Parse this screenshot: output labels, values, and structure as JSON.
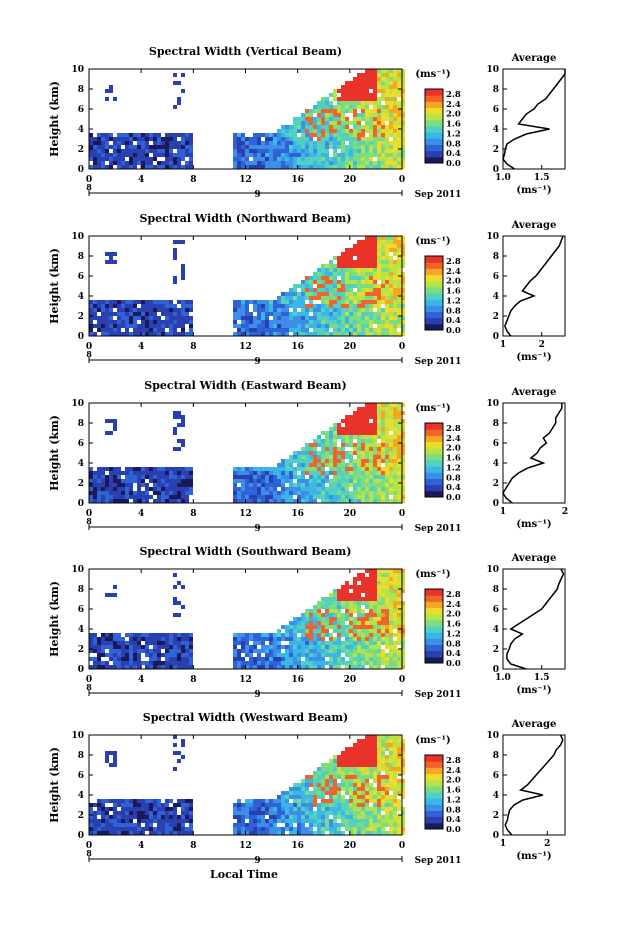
{
  "figure": {
    "xlabel": "Local Time",
    "date_label": "Sep 2011",
    "colorbar_unit": "(ms⁻¹)",
    "colorbar_ticks": [
      "0.0",
      "0.4",
      "0.8",
      "1.2",
      "1.6",
      "2.0",
      "2.4",
      "2.8"
    ],
    "average_title": "Average",
    "average_xlabel": "(ms⁻¹)",
    "colors": [
      "#1a1a5a",
      "#2a3fb0",
      "#2f62d6",
      "#3d8ee8",
      "#39b7e6",
      "#52d1c0",
      "#7ddc7f",
      "#b7e34a",
      "#ecdc2c",
      "#f6a623",
      "#f0632a",
      "#e8322a"
    ]
  },
  "chart_data": [
    {
      "type": "heatmap",
      "title": "Spectral Width (Vertical Beam)",
      "ylabel": "Height (km)",
      "xlabel": "Local Time",
      "x_ticks": [
        "0",
        "4",
        "8",
        "12",
        "16",
        "20",
        "0"
      ],
      "y_ticks": [
        "0",
        "2",
        "4",
        "6",
        "8",
        "10"
      ],
      "date_ticks": [
        "8",
        "9"
      ],
      "ylim": [
        0,
        10
      ],
      "xlim": [
        0,
        24
      ],
      "colorbar": {
        "min": 0.0,
        "max": 3.0,
        "ticks": [
          "0.0",
          "0.4",
          "0.8",
          "1.2",
          "1.6",
          "2.0",
          "2.4",
          "2.8"
        ]
      },
      "average_profile": {
        "xlim": [
          1.0,
          1.8
        ],
        "x_ticks": [
          "1.0",
          "1.5"
        ],
        "height": [
          0,
          0.5,
          1,
          1.5,
          2,
          2.5,
          3,
          3.5,
          4,
          4.5,
          5,
          5.5,
          6,
          6.5,
          7,
          7.5,
          8,
          8.5,
          9,
          9.5,
          10
        ],
        "value": [
          1.15,
          1.05,
          1.0,
          1.02,
          1.03,
          1.05,
          1.15,
          1.3,
          1.6,
          1.2,
          1.25,
          1.3,
          1.4,
          1.45,
          1.55,
          1.6,
          1.65,
          1.7,
          1.75,
          1.8,
          1.8
        ]
      }
    },
    {
      "type": "heatmap",
      "title": "Spectral Width (Northward Beam)",
      "ylabel": "Height (km)",
      "xlabel": "Local Time",
      "x_ticks": [
        "0",
        "4",
        "8",
        "12",
        "16",
        "20",
        "0"
      ],
      "y_ticks": [
        "0",
        "2",
        "4",
        "6",
        "8",
        "10"
      ],
      "date_ticks": [
        "8",
        "9"
      ],
      "ylim": [
        0,
        10
      ],
      "xlim": [
        0,
        24
      ],
      "colorbar": {
        "min": 0.0,
        "max": 3.0,
        "ticks": [
          "0.0",
          "0.4",
          "0.8",
          "1.2",
          "1.6",
          "2.0",
          "2.4",
          "2.8"
        ]
      },
      "average_profile": {
        "xlim": [
          1.0,
          2.6
        ],
        "x_ticks": [
          "1",
          "2"
        ],
        "height": [
          0,
          0.5,
          1,
          1.5,
          2,
          2.5,
          3,
          3.5,
          4,
          4.5,
          5,
          5.5,
          6,
          6.5,
          7,
          7.5,
          8,
          8.5,
          9,
          9.5,
          10
        ],
        "value": [
          1.2,
          1.1,
          1.05,
          1.1,
          1.15,
          1.2,
          1.3,
          1.45,
          1.8,
          1.5,
          1.6,
          1.7,
          1.85,
          1.95,
          2.05,
          2.15,
          2.25,
          2.35,
          2.45,
          2.5,
          2.55
        ]
      }
    },
    {
      "type": "heatmap",
      "title": "Spectral Width (Eastward Beam)",
      "ylabel": "Height (km)",
      "xlabel": "Local Time",
      "x_ticks": [
        "0",
        "4",
        "8",
        "12",
        "16",
        "20",
        "0"
      ],
      "y_ticks": [
        "0",
        "2",
        "4",
        "6",
        "8",
        "10"
      ],
      "date_ticks": [
        "8",
        "9"
      ],
      "ylim": [
        0,
        10
      ],
      "xlim": [
        0,
        24
      ],
      "colorbar": {
        "min": 0.0,
        "max": 3.0,
        "ticks": [
          "0.0",
          "0.4",
          "0.8",
          "1.2",
          "1.6",
          "2.0",
          "2.4",
          "2.8"
        ]
      },
      "average_profile": {
        "xlim": [
          1.0,
          2.0
        ],
        "x_ticks": [
          "1",
          "2"
        ],
        "height": [
          0,
          0.5,
          1,
          1.5,
          2,
          2.5,
          3,
          3.5,
          4,
          4.5,
          5,
          5.5,
          6,
          6.5,
          7,
          7.5,
          8,
          8.5,
          9,
          9.5,
          10
        ],
        "value": [
          1.15,
          1.05,
          1.0,
          1.05,
          1.1,
          1.15,
          1.25,
          1.4,
          1.65,
          1.45,
          1.55,
          1.6,
          1.7,
          1.65,
          1.75,
          1.8,
          1.85,
          1.85,
          1.9,
          1.95,
          1.95
        ]
      }
    },
    {
      "type": "heatmap",
      "title": "Spectral Width (Southward Beam)",
      "ylabel": "Height (km)",
      "xlabel": "Local Time",
      "x_ticks": [
        "0",
        "4",
        "8",
        "12",
        "16",
        "20",
        "0"
      ],
      "y_ticks": [
        "0",
        "2",
        "4",
        "6",
        "8",
        "10"
      ],
      "date_ticks": [
        "8",
        "9"
      ],
      "ylim": [
        0,
        10
      ],
      "xlim": [
        0,
        24
      ],
      "colorbar": {
        "min": 0.0,
        "max": 3.0,
        "ticks": [
          "0.0",
          "0.4",
          "0.8",
          "1.2",
          "1.6",
          "2.0",
          "2.4",
          "2.8"
        ]
      },
      "average_profile": {
        "xlim": [
          1.0,
          1.8
        ],
        "x_ticks": [
          "1.0",
          "1.5"
        ],
        "height": [
          0,
          0.5,
          1,
          1.5,
          2,
          2.5,
          3,
          3.5,
          4,
          4.5,
          5,
          5.5,
          6,
          6.5,
          7,
          7.5,
          8,
          8.5,
          9,
          9.5,
          10
        ],
        "value": [
          1.3,
          1.1,
          1.05,
          1.05,
          1.08,
          1.1,
          1.15,
          1.25,
          1.1,
          1.2,
          1.3,
          1.4,
          1.5,
          1.55,
          1.6,
          1.65,
          1.7,
          1.72,
          1.75,
          1.78,
          1.75
        ]
      }
    },
    {
      "type": "heatmap",
      "title": "Spectral Width (Westward Beam)",
      "ylabel": "Height (km)",
      "xlabel": "Local Time",
      "x_ticks": [
        "0",
        "4",
        "8",
        "12",
        "16",
        "20",
        "0"
      ],
      "y_ticks": [
        "0",
        "2",
        "4",
        "6",
        "8",
        "10"
      ],
      "date_ticks": [
        "8",
        "9"
      ],
      "ylim": [
        0,
        10
      ],
      "xlim": [
        0,
        24
      ],
      "colorbar": {
        "min": 0.0,
        "max": 3.0,
        "ticks": [
          "0.0",
          "0.4",
          "0.8",
          "1.2",
          "1.6",
          "2.0",
          "2.4",
          "2.8"
        ]
      },
      "average_profile": {
        "xlim": [
          1.0,
          2.4
        ],
        "x_ticks": [
          "1",
          "2"
        ],
        "height": [
          0,
          0.5,
          1,
          1.5,
          2,
          2.5,
          3,
          3.5,
          4,
          4.5,
          5,
          5.5,
          6,
          6.5,
          7,
          7.5,
          8,
          8.5,
          9,
          9.5,
          10
        ],
        "value": [
          1.2,
          1.1,
          1.05,
          1.1,
          1.12,
          1.15,
          1.25,
          1.45,
          1.9,
          1.4,
          1.55,
          1.65,
          1.75,
          1.85,
          1.95,
          2.05,
          2.15,
          2.2,
          2.3,
          2.35,
          2.3
        ]
      }
    }
  ]
}
